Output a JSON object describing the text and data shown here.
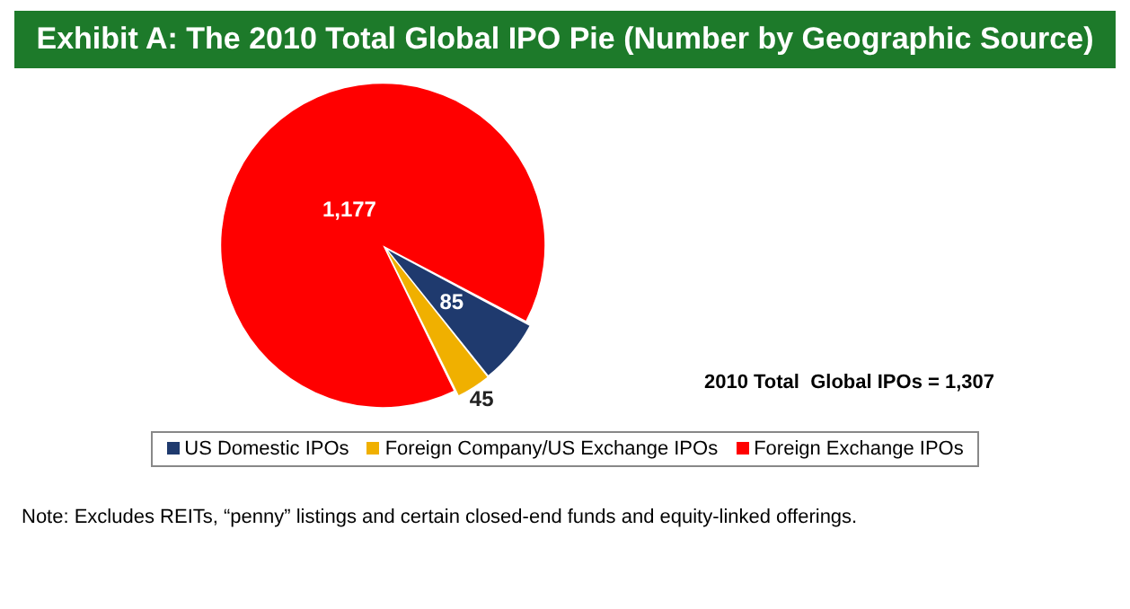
{
  "chart_data": {
    "type": "pie",
    "title": "Exhibit A: The 2010 Total Global IPO Pie (Number by Geographic Source)",
    "categories": [
      "US Domestic IPOs",
      "Foreign Company/US Exchange IPOs",
      "Foreign Exchange IPOs"
    ],
    "values": [
      85,
      45,
      1177
    ],
    "colors": [
      "#1f3a6e",
      "#f0b000",
      "#ff0000"
    ],
    "value_labels": [
      "85",
      "45",
      "1,177"
    ],
    "legend": "bottom",
    "annotations": [
      "2010 Total  Global IPOs = 1,307",
      "Note: Excludes REITs, “penny” listings and certain closed-end funds and equity-linked offerings."
    ]
  }
}
